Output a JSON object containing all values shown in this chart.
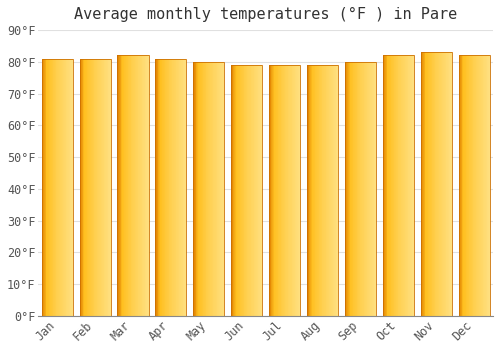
{
  "title": "Average monthly temperatures (°F ) in Pare",
  "months": [
    "Jan",
    "Feb",
    "Mar",
    "Apr",
    "May",
    "Jun",
    "Jul",
    "Aug",
    "Sep",
    "Oct",
    "Nov",
    "Dec"
  ],
  "values": [
    81,
    81,
    82,
    81,
    80,
    79,
    79,
    79,
    80,
    82,
    83,
    82
  ],
  "bar_color_left": "#E08000",
  "bar_color_mid": "#FFC020",
  "bar_color_right": "#FFD060",
  "bar_edge_color": "#CC7000",
  "background_color": "#FFFFFF",
  "grid_color": "#E0E0E0",
  "ylim": [
    0,
    90
  ],
  "ytick_step": 10,
  "ylabel_format": "{0}°F",
  "title_fontsize": 11,
  "tick_fontsize": 8.5,
  "bar_width": 0.82
}
